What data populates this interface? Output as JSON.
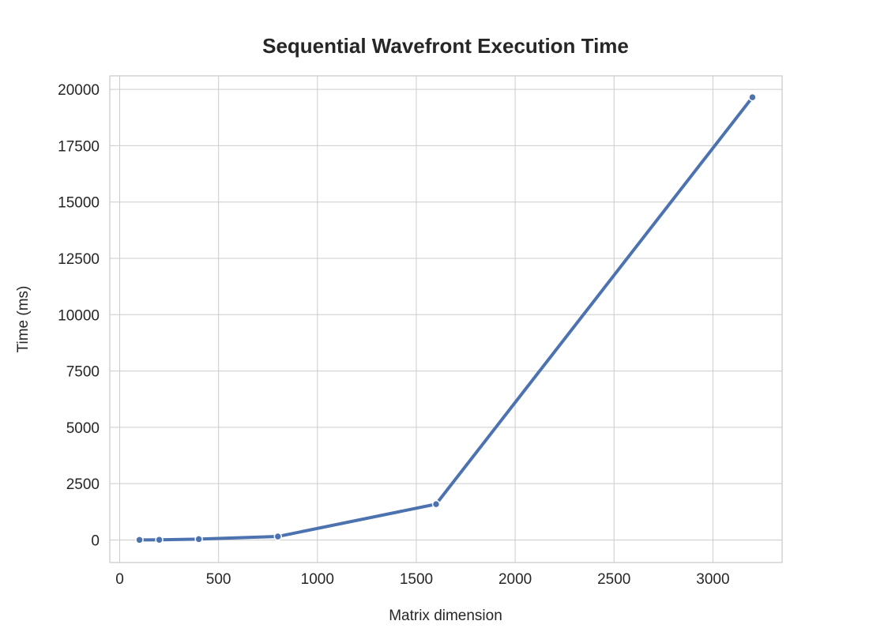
{
  "chart_data": {
    "type": "line",
    "title": "Sequential Wavefront Execution Time",
    "xlabel": "Matrix dimension",
    "ylabel": "Time (ms)",
    "xlim": [
      -50,
      3350
    ],
    "ylim": [
      -1000,
      20600
    ],
    "xticks": [
      0,
      500,
      1000,
      1500,
      2000,
      2500,
      3000
    ],
    "xtick_labels": [
      "0",
      "500",
      "1000",
      "1500",
      "2000",
      "2500",
      "3000"
    ],
    "yticks": [
      0,
      2500,
      5000,
      7500,
      10000,
      12500,
      15000,
      17500,
      20000
    ],
    "ytick_labels": [
      "0",
      "2500",
      "5000",
      "7500",
      "10000",
      "12500",
      "15000",
      "17500",
      "20000"
    ],
    "grid": true,
    "series": [
      {
        "color": "#4c72b0",
        "marker": "circle",
        "x": [
          100,
          200,
          400,
          800,
          1600,
          3200
        ],
        "y": [
          5,
          10,
          40,
          155,
          1590,
          19650
        ]
      }
    ]
  }
}
